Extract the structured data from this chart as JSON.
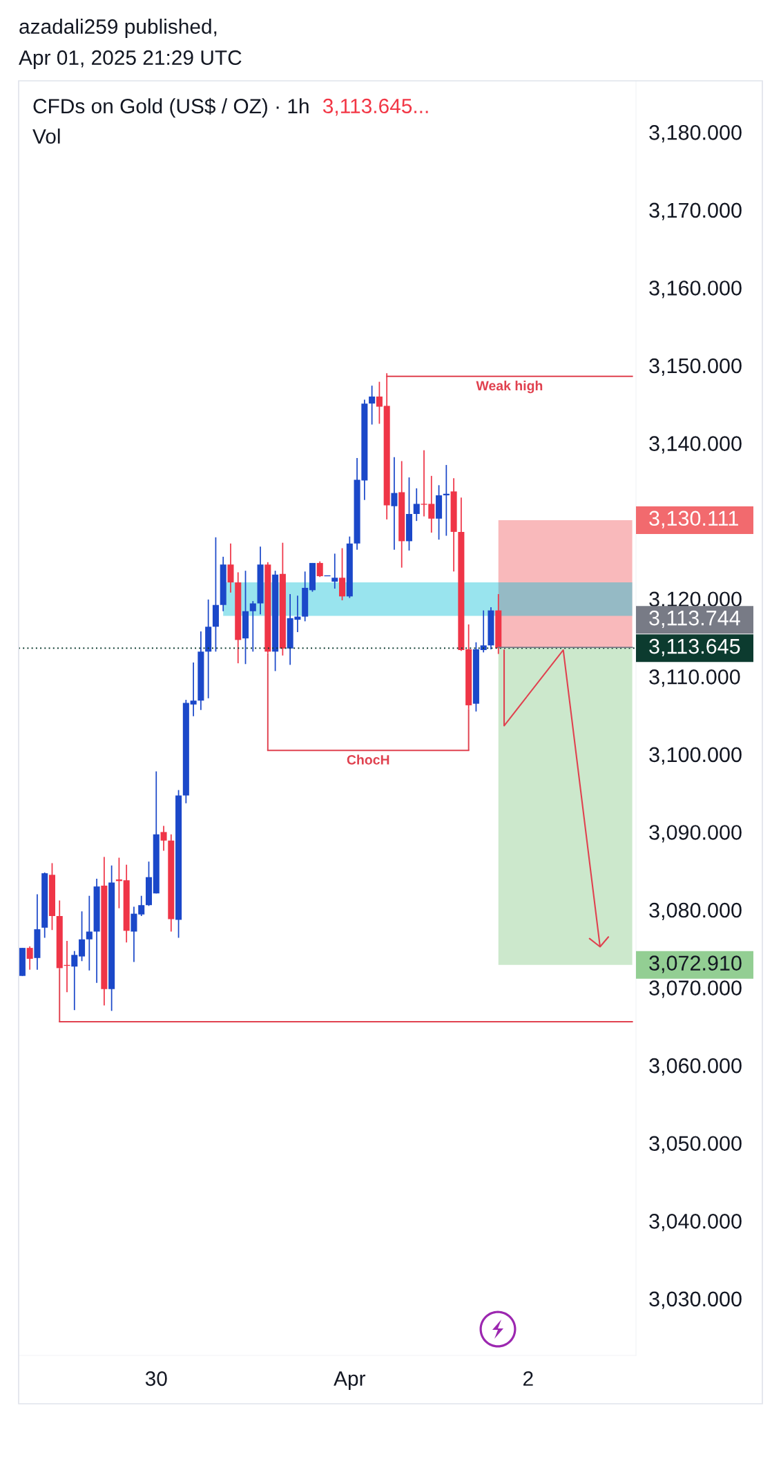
{
  "chart_data": {
    "type": "candlestick",
    "title": "CFDs on Gold (US$ / OZ) · 1h",
    "subtitle": "Vol",
    "annotations": [
      "azadali259 published,",
      "Apr 01, 2025 21:29 UTC",
      "3,113.645..."
    ],
    "categories": [
      null,
      null,
      null,
      null,
      null,
      null,
      null,
      null,
      null,
      null,
      null,
      null,
      null,
      null,
      null,
      null,
      null,
      null,
      "30",
      null,
      null,
      null,
      null,
      null,
      null,
      null,
      null,
      null,
      null,
      null,
      null,
      null,
      null,
      null,
      null,
      null,
      null,
      null,
      null,
      null,
      null,
      null,
      null,
      null,
      "Apr",
      null,
      null,
      null,
      null,
      null,
      null,
      null,
      null,
      null,
      null,
      null,
      null,
      null,
      null,
      null,
      null,
      null,
      null,
      null,
      null,
      null,
      null,
      null,
      "2",
      null,
      null,
      null,
      null,
      null,
      null,
      null,
      null,
      null,
      null,
      null,
      null,
      null,
      null
    ],
    "ohlc": [
      [
        3071.5,
        3075.1,
        3071.5,
        3075.1
      ],
      [
        3075.1,
        3075.3,
        3072.3,
        3073.7
      ],
      [
        3073.8,
        3082.0,
        3072.3,
        3077.5
      ],
      [
        3077.7,
        3084.8,
        3076.4,
        3084.7
      ],
      [
        3084.5,
        3086.0,
        3077.4,
        3079.2
      ],
      [
        3079.2,
        3081.2,
        3072.4,
        3072.5
      ],
      [
        3072.9,
        3076.0,
        3069.4,
        3072.8
      ],
      [
        3072.7,
        3074.7,
        3067.1,
        3074.2
      ],
      [
        3074.0,
        3079.8,
        3073.4,
        3076.2
      ],
      [
        3076.2,
        3081.8,
        3072.2,
        3077.2
      ],
      [
        3077.2,
        3084.0,
        3070.6,
        3083.0
      ],
      [
        3083.1,
        3086.8,
        3067.7,
        3069.8
      ],
      [
        3069.8,
        3085.7,
        3067.0,
        3083.5
      ],
      [
        3083.9,
        3086.7,
        3080.2,
        3083.7
      ],
      [
        3083.8,
        3085.8,
        3075.8,
        3077.3
      ],
      [
        3077.2,
        3080.4,
        3073.3,
        3079.5
      ],
      [
        3079.4,
        3081.8,
        3079.2,
        3080.6
      ],
      [
        3080.6,
        3086.2,
        3080.5,
        3084.2
      ],
      [
        3082.1,
        3097.8,
        3082.1,
        3089.7
      ],
      [
        3090.0,
        3090.8,
        3087.6,
        3088.9
      ],
      [
        3088.9,
        3089.7,
        3077.2,
        3078.8
      ],
      [
        3078.7,
        3095.4,
        3076.4,
        3094.7
      ],
      [
        3094.7,
        3107.0,
        3093.7,
        3106.6
      ],
      [
        3106.4,
        3111.8,
        3104.9,
        3106.9
      ],
      [
        3106.9,
        3115.8,
        3105.7,
        3113.2
      ],
      [
        3113.2,
        3119.9,
        3107.2,
        3116.4
      ],
      [
        3116.4,
        3127.9,
        3113.2,
        3119.2
      ],
      [
        3119.2,
        3125.4,
        3118.4,
        3124.4
      ],
      [
        3124.4,
        3127.1,
        3120.8,
        3122.1
      ],
      [
        3122.1,
        3123.4,
        3111.7,
        3114.7
      ],
      [
        3114.9,
        3123.6,
        3111.6,
        3118.4
      ],
      [
        3118.4,
        3119.7,
        3113.2,
        3119.4
      ],
      [
        3119.4,
        3126.7,
        3118.0,
        3124.4
      ],
      [
        3124.4,
        3124.7,
        3113.0,
        3113.2
      ],
      [
        3113.2,
        3123.6,
        3110.7,
        3123.1
      ],
      [
        3123.2,
        3127.2,
        3112.7,
        3113.6
      ],
      [
        3113.6,
        3120.6,
        3111.5,
        3117.5
      ],
      [
        3117.3,
        3120.4,
        3115.7,
        3117.7
      ],
      [
        3117.7,
        3123.5,
        3117.1,
        3121.4
      ],
      [
        3121.1,
        3124.6,
        3120.9,
        3124.6
      ],
      [
        3124.6,
        3124.8,
        3122.8,
        3122.9
      ],
      [
        3122.9,
        3123.0,
        3122.9,
        3123.0
      ],
      [
        3122.2,
        3125.8,
        3121.3,
        3122.7
      ],
      [
        3122.7,
        3126.5,
        3119.8,
        3120.3
      ],
      [
        3120.3,
        3128.0,
        3120.1,
        3127.1
      ],
      [
        3127.1,
        3138.1,
        3126.3,
        3135.3
      ],
      [
        3135.2,
        3145.6,
        3132.7,
        3145.1
      ],
      [
        3145.1,
        3147.4,
        3142.4,
        3146.0
      ],
      [
        3146.0,
        3147.9,
        3142.5,
        3144.7
      ],
      [
        3144.8,
        3149.0,
        3130.2,
        3132.0
      ],
      [
        3131.9,
        3138.2,
        3126.3,
        3133.6
      ],
      [
        3133.7,
        3137.7,
        3124.0,
        3127.4
      ],
      [
        3127.4,
        3135.6,
        3126.2,
        3130.9
      ],
      [
        3130.9,
        3134.2,
        3130.0,
        3132.2
      ],
      [
        3132.2,
        3139.1,
        3130.6,
        3132.1
      ],
      [
        3132.2,
        3135.8,
        3128.5,
        3130.3
      ],
      [
        3130.3,
        3134.6,
        3127.6,
        3133.3
      ],
      [
        3133.3,
        3137.2,
        3128.1,
        3133.5
      ],
      [
        3133.8,
        3135.5,
        3123.5,
        3128.6
      ],
      [
        3128.6,
        3133.0,
        3113.3,
        3113.4
      ],
      [
        3113.5,
        3116.7,
        3105.8,
        3106.3
      ],
      [
        3106.5,
        3114.4,
        3105.5,
        3113.5
      ],
      [
        3113.4,
        3118.5,
        3113.1,
        3114.0
      ],
      [
        3114.0,
        3118.9,
        3113.5,
        3118.5
      ],
      [
        3118.5,
        3120.6,
        3112.9,
        3113.645
      ],
      null,
      null,
      null,
      null,
      null,
      null,
      null,
      null,
      null,
      null,
      null,
      null,
      null,
      null,
      null,
      null,
      null,
      null
    ],
    "colors": [
      "#1b48c9",
      "#ef3547",
      "#1b48c9",
      "#1b48c9",
      "#ef3547",
      "#ef3547",
      "#ef3547",
      "#1b48c9",
      "#1b48c9",
      "#1b48c9",
      "#1b48c9",
      "#ef3547",
      "#1b48c9",
      "#ef3547",
      "#ef3547",
      "#1b48c9",
      "#1b48c9",
      "#1b48c9",
      "#1b48c9",
      "#ef3547",
      "#ef3547",
      "#1b48c9",
      "#1b48c9",
      "#1b48c9",
      "#1b48c9",
      "#1b48c9",
      "#1b48c9",
      "#1b48c9",
      "#ef3547",
      "#ef3547",
      "#1b48c9",
      "#1b48c9",
      "#1b48c9",
      "#ef3547",
      "#1b48c9",
      "#ef3547",
      "#1b48c9",
      "#1b48c9",
      "#1b48c9",
      "#1b48c9",
      "#ef3547",
      "#1b48c9",
      "#1b48c9",
      "#ef3547",
      "#1b48c9",
      "#1b48c9",
      "#1b48c9",
      "#1b48c9",
      "#ef3547",
      "#ef3547",
      "#1b48c9",
      "#ef3547",
      "#1b48c9",
      "#1b48c9",
      "#ef3547",
      "#ef3547",
      "#1b48c9",
      "#1b48c9",
      "#ef3547",
      "#ef3547",
      "#ef3547",
      "#1b48c9",
      "#1b48c9",
      "#1b48c9",
      "#ef3547",
      null,
      null,
      null,
      null,
      null,
      null,
      null,
      null,
      null,
      null,
      null,
      null,
      null,
      null,
      null,
      null,
      null,
      null
    ],
    "ylim": [
      3022.7,
      3186.6
    ],
    "yticks": [
      {
        "value": 3180,
        "label": "3,180.000"
      },
      {
        "value": 3170,
        "label": "3,170.000"
      },
      {
        "value": 3160,
        "label": "3,160.000"
      },
      {
        "value": 3150,
        "label": "3,150.000"
      },
      {
        "value": 3140,
        "label": "3,140.000"
      },
      {
        "value": 3120,
        "label": "3,120.000"
      },
      {
        "value": 3110,
        "label": "3,110.000"
      },
      {
        "value": 3100,
        "label": "3,100.000"
      },
      {
        "value": 3090,
        "label": "3,090.000"
      },
      {
        "value": 3080,
        "label": "3,080.000"
      },
      {
        "value": 3070,
        "label": "3,070.000"
      },
      {
        "value": 3060,
        "label": "3,060.000"
      },
      {
        "value": 3050,
        "label": "3,050.000"
      },
      {
        "value": 3040,
        "label": "3,040.000"
      },
      {
        "value": 3030,
        "label": "3,030.000"
      }
    ],
    "ref_lines": [
      {
        "axis": "y",
        "value": 3113.645,
        "label": "3,113.645",
        "color": "#0c3b2f",
        "line_style": "dotted"
      },
      {
        "axis": "y",
        "value": 3113.744,
        "label": "3,113.744",
        "color": "#787b86",
        "line_style": "solid"
      },
      {
        "axis": "y",
        "value": 3148.6,
        "label": "Weak high",
        "color": "#e0414f",
        "line_style": "solid"
      },
      {
        "axis": "y",
        "value": 3100.5,
        "label": "ChocH",
        "color": "#e0414f",
        "line_style": "solid"
      },
      {
        "axis": "y",
        "value": 3065.6,
        "color": "#e0414f",
        "line_style": "solid"
      }
    ],
    "bands": [
      {
        "axis": "y",
        "from": 3113.744,
        "to": 3130.111,
        "label": "3,130.111",
        "color": "#f9b9bb"
      },
      {
        "axis": "y",
        "from": 3072.91,
        "to": 3113.744,
        "label": "3,072.910",
        "color": "#cce8cc"
      },
      {
        "axis": "y",
        "from": 3117.8,
        "to": 3122.1,
        "color": "#99e4ee"
      }
    ]
  }
}
